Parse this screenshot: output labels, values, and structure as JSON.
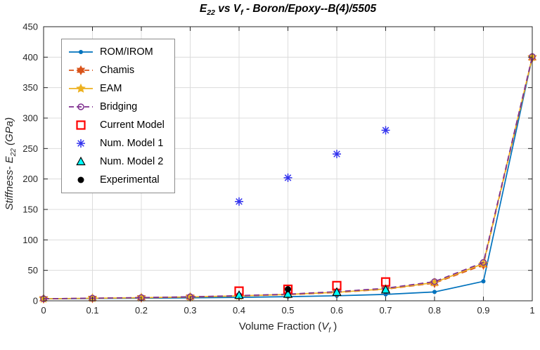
{
  "chart_data": {
    "type": "line",
    "title_text": "E22 vs Vf  -  Boron/Epoxy--B(4)/5505",
    "title_segments": [
      {
        "text": "E"
      },
      {
        "text": "22",
        "sub": true
      },
      {
        "text": " vs "
      },
      {
        "text": "V"
      },
      {
        "text": "f",
        "sub": true
      },
      {
        "text": "  -  Boron/Epoxy--B(4)/5505"
      }
    ],
    "xlabel_text": "Volume Fraction (Vf)",
    "xlabel_segments": [
      {
        "text": "Volume Fraction ("
      },
      {
        "text": "V",
        "italic": true
      },
      {
        "text": "f",
        "sub": true,
        "italic": true
      },
      {
        "text": " )"
      }
    ],
    "ylabel_text": "Stiffness- E22 (GPa)",
    "ylabel_segments": [
      {
        "text": "Stiffness- ",
        "italic": true
      },
      {
        "text": "E",
        "italic": true
      },
      {
        "text": "22",
        "sub": true,
        "italic": true
      },
      {
        "text": " (GPa)",
        "italic": true
      }
    ],
    "xlim": [
      0,
      1
    ],
    "ylim": [
      0,
      450
    ],
    "x_ticks": [
      "0",
      "0.1",
      "0.2",
      "0.3",
      "0.4",
      "0.5",
      "0.6",
      "0.7",
      "0.8",
      "0.9",
      "1"
    ],
    "x_tick_values": [
      0,
      0.1,
      0.2,
      0.3,
      0.4,
      0.5,
      0.6,
      0.7,
      0.8,
      0.9,
      1
    ],
    "y_ticks": [
      "0",
      "50",
      "100",
      "150",
      "200",
      "250",
      "300",
      "350",
      "400",
      "450"
    ],
    "y_tick_values": [
      0,
      50,
      100,
      150,
      200,
      250,
      300,
      350,
      400,
      450
    ],
    "grid": true,
    "legend_position": "northwest",
    "x": [
      0,
      0.1,
      0.2,
      0.3,
      0.4,
      0.5,
      0.6,
      0.7,
      0.8,
      0.9,
      1
    ],
    "series": [
      {
        "name": "ROM/IROM",
        "color": "#0072BD",
        "line": "solid",
        "marker": "dot",
        "msize": 3,
        "values": [
          3.4,
          3.8,
          4.3,
          4.9,
          5.7,
          6.8,
          8.3,
          10.5,
          14.5,
          32,
          400
        ]
      },
      {
        "name": "Chamis",
        "color": "#D95319",
        "line": "dash",
        "marker": "hexagram",
        "msize": 6,
        "values": [
          3.4,
          4.1,
          5.0,
          6.1,
          7.8,
          10.0,
          13.5,
          19.0,
          29.0,
          59.0,
          399
        ]
      },
      {
        "name": "EAM",
        "color": "#EDB120",
        "line": "solid",
        "marker": "pentagram",
        "msize": 6,
        "values": [
          3.4,
          4.2,
          5.1,
          6.3,
          8.1,
          10.5,
          14.0,
          19.5,
          30.0,
          61.0,
          400
        ]
      },
      {
        "name": "Bridging",
        "color": "#7E2F8E",
        "line": "dash",
        "marker": "circle-open",
        "msize": 4,
        "values": [
          3.4,
          4.3,
          5.3,
          6.6,
          8.5,
          11.0,
          15.0,
          20.5,
          31.5,
          63.0,
          401
        ]
      },
      {
        "name": "Current Model",
        "color": "#FF0000",
        "line": "none",
        "marker": "square-open",
        "msize": 5.5,
        "x": [
          0.4,
          0.5,
          0.6,
          0.7
        ],
        "values": [
          16,
          19,
          25,
          31
        ]
      },
      {
        "name": "Num. Model 1",
        "color": "#3333EE",
        "line": "none",
        "marker": "asterisk",
        "msize": 6,
        "x": [
          0.4,
          0.5,
          0.6,
          0.7
        ],
        "values": [
          163,
          202,
          241,
          280
        ]
      },
      {
        "name": "Num. Model 2",
        "color": "#00FFFF",
        "edge": "#000000",
        "line": "none",
        "marker": "triangle",
        "msize": 6,
        "x": [
          0.4,
          0.5,
          0.6,
          0.7
        ],
        "values": [
          9,
          11,
          14,
          18
        ]
      },
      {
        "name": "Experimental",
        "color": "#000000",
        "line": "none",
        "marker": "dot",
        "msize": 4.5,
        "x": [
          0.5
        ],
        "values": [
          19
        ]
      }
    ],
    "style": {
      "axis_color": "#262626",
      "grid_color": "#dcdcdc",
      "background": "#ffffff"
    }
  }
}
